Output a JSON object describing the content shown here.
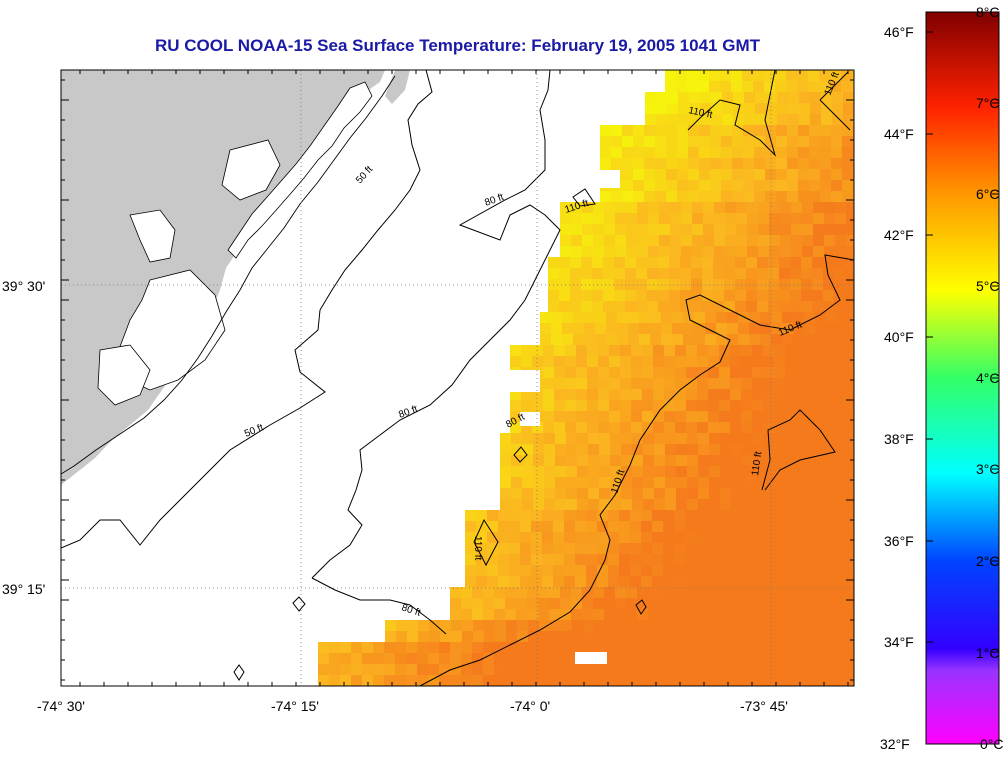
{
  "title": "RU COOL  NOAA-15  Sea Surface Temperature:  February 19, 2005 1041 GMT",
  "map": {
    "lon_labels": [
      "-74° 30'",
      "-74° 15'",
      "-74° 0'",
      "-73° 45'"
    ],
    "lat_labels": [
      "39° 30'",
      "39° 15'"
    ],
    "contour_labels": [
      "50 ft",
      "50 ft",
      "80 ft",
      "80 ft",
      "80 ft",
      "80 ft",
      "110 ft",
      "110 ft",
      "110 ft",
      "110 ft",
      "110 ft",
      "110 ft",
      "110 ft"
    ]
  },
  "colorbar": {
    "celsius_labels": [
      "8°C",
      "7°C",
      "6°C",
      "5°C",
      "4°C",
      "3°C",
      "2°C",
      "1°C",
      "0°C"
    ],
    "fahrenheit_labels": [
      "46°F",
      "44°F",
      "42°F",
      "40°F",
      "38°F",
      "36°F",
      "34°F",
      "32°F"
    ],
    "colors": [
      "#ff00ff",
      "#7a33ff",
      "#0033ff",
      "#0099ff",
      "#00ffff",
      "#33ff99",
      "#ffff00",
      "#ffaa00",
      "#ff6600",
      "#ff0000",
      "#aa0000",
      "#800000"
    ]
  },
  "colors": {
    "land": "#c8c8c8",
    "title": "#1a1aa6",
    "sst_warm": "#f57a1c",
    "sst_mid": "#fbb820",
    "sst_cool": "#f6f40c"
  }
}
